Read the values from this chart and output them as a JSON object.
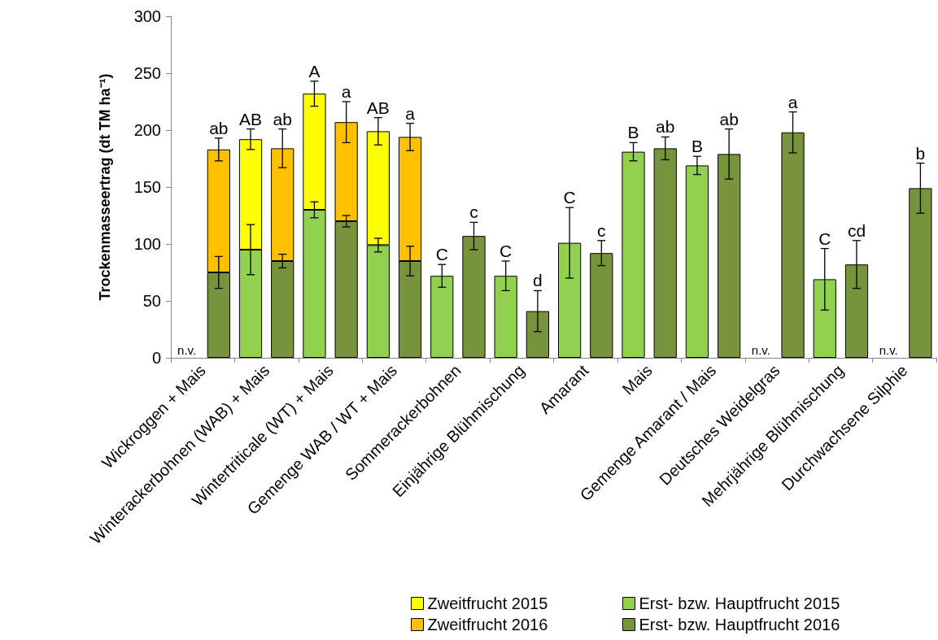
{
  "chart_data": {
    "type": "bar",
    "ylabel": "Trockenmasseertrag (dt TM ha⁻¹)",
    "categories": [
      "Wickroggen + Mais",
      null,
      "Winterackerbohnen (WAB) + Mais",
      null,
      "Wintertriticale (WT) + Mais",
      null,
      "Gemenge WAB / WT + Mais",
      null,
      "Sommerackerbohnen",
      null,
      "Einjährige Blühmischung",
      null,
      "Amarant",
      null,
      "Mais",
      null,
      "Gemenge Amarant / Mais",
      null,
      "Deutsches Weidelgras",
      null,
      "Mehrjährige Blühmischung",
      null,
      "Durchwachsene Silphie",
      null
    ],
    "stacked": true,
    "series": [
      {
        "name": "Erst- bzw. Hauptfrucht 2015",
        "color": "#92d050",
        "values": [
          null,
          null,
          95,
          null,
          130,
          null,
          99,
          null,
          72,
          null,
          72,
          null,
          101,
          null,
          181,
          null,
          169,
          null,
          null,
          null,
          69,
          null,
          null,
          null
        ],
        "errors": [
          null,
          null,
          22,
          null,
          7,
          null,
          6,
          null,
          10,
          null,
          13,
          null,
          31,
          null,
          8,
          null,
          8,
          null,
          null,
          null,
          27,
          null,
          null,
          null
        ]
      },
      {
        "name": "Zweitfrucht 2015",
        "color": "#ffff00",
        "values": [
          null,
          null,
          97,
          null,
          102,
          null,
          100,
          null,
          null,
          null,
          null,
          null,
          null,
          null,
          null,
          null,
          null,
          null,
          null,
          null,
          null,
          null,
          null,
          null
        ],
        "errors": [
          null,
          null,
          9,
          null,
          11,
          null,
          12,
          null,
          null,
          null,
          null,
          null,
          null,
          null,
          null,
          null,
          null,
          null,
          null,
          null,
          null,
          null,
          null,
          null
        ]
      },
      {
        "name": "Erst- bzw. Hauptfrucht 2016",
        "color": "#77933c",
        "values": [
          null,
          75,
          null,
          85,
          null,
          120,
          null,
          85,
          null,
          107,
          null,
          41,
          null,
          92,
          null,
          184,
          null,
          179,
          null,
          198,
          null,
          82,
          null,
          149
        ],
        "errors": [
          null,
          14,
          null,
          6,
          null,
          5,
          null,
          13,
          null,
          12,
          null,
          18,
          null,
          11,
          null,
          10,
          null,
          22,
          null,
          18,
          null,
          21,
          null,
          22
        ]
      },
      {
        "name": "Zweitfrucht 2016",
        "color": "#ffc000",
        "values": [
          null,
          108,
          null,
          99,
          null,
          87,
          null,
          109,
          null,
          null,
          null,
          null,
          null,
          null,
          null,
          null,
          null,
          null,
          null,
          null,
          null,
          null,
          null,
          null
        ],
        "errors": [
          null,
          10,
          null,
          17,
          null,
          18,
          null,
          12,
          null,
          null,
          null,
          null,
          null,
          null,
          null,
          null,
          null,
          null,
          null,
          null,
          null,
          null,
          null,
          null
        ]
      }
    ],
    "ylim": [
      0,
      300
    ],
    "yticks": [
      0,
      50,
      100,
      150,
      200,
      250,
      300
    ],
    "grid": false,
    "legend": "bottom right",
    "annotations": [
      "n.v.",
      "ab",
      "AB",
      "ab",
      "A",
      "a",
      "AB",
      "a",
      "C",
      "c",
      "C",
      "d",
      "C",
      "c",
      "B",
      "ab",
      "B",
      "ab",
      "n.v.",
      "a",
      "C",
      "cd",
      "n.v.",
      "b"
    ]
  }
}
